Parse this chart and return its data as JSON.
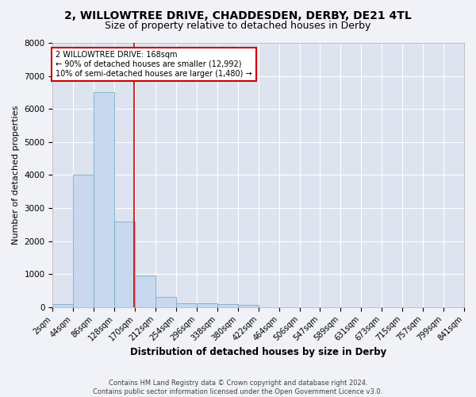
{
  "title": "2, WILLOWTREE DRIVE, CHADDESDEN, DERBY, DE21 4TL",
  "subtitle": "Size of property relative to detached houses in Derby",
  "xlabel": "Distribution of detached houses by size in Derby",
  "ylabel": "Number of detached properties",
  "footer_line1": "Contains HM Land Registry data © Crown copyright and database right 2024.",
  "footer_line2": "Contains public sector information licensed under the Open Government Licence v3.0.",
  "bin_edges": [
    2,
    44,
    86,
    128,
    170,
    212,
    254,
    296,
    338,
    380,
    422,
    464,
    506,
    547,
    589,
    631,
    673,
    715,
    757,
    799,
    841
  ],
  "bar_values": [
    100,
    4000,
    6500,
    2600,
    950,
    300,
    120,
    120,
    100,
    70,
    0,
    0,
    0,
    0,
    0,
    0,
    0,
    0,
    0,
    0
  ],
  "bar_color": "#c8d8ee",
  "bar_edge_color": "#7aadcc",
  "property_size": 168,
  "red_line_color": "#cc0000",
  "annotation_text_line1": "2 WILLOWTREE DRIVE: 168sqm",
  "annotation_text_line2": "← 90% of detached houses are smaller (12,992)",
  "annotation_text_line3": "10% of semi-detached houses are larger (1,480) →",
  "annotation_box_color": "white",
  "annotation_border_color": "#cc0000",
  "ylim": [
    0,
    8000
  ],
  "background_color": "#f0f2f8",
  "plot_background_color": "#dde3ef",
  "grid_color": "white",
  "title_fontsize": 10,
  "subtitle_fontsize": 9,
  "axis_label_fontsize": 8.5,
  "tick_label_fontsize": 7,
  "annotation_fontsize": 7,
  "ylabel_fontsize": 8
}
